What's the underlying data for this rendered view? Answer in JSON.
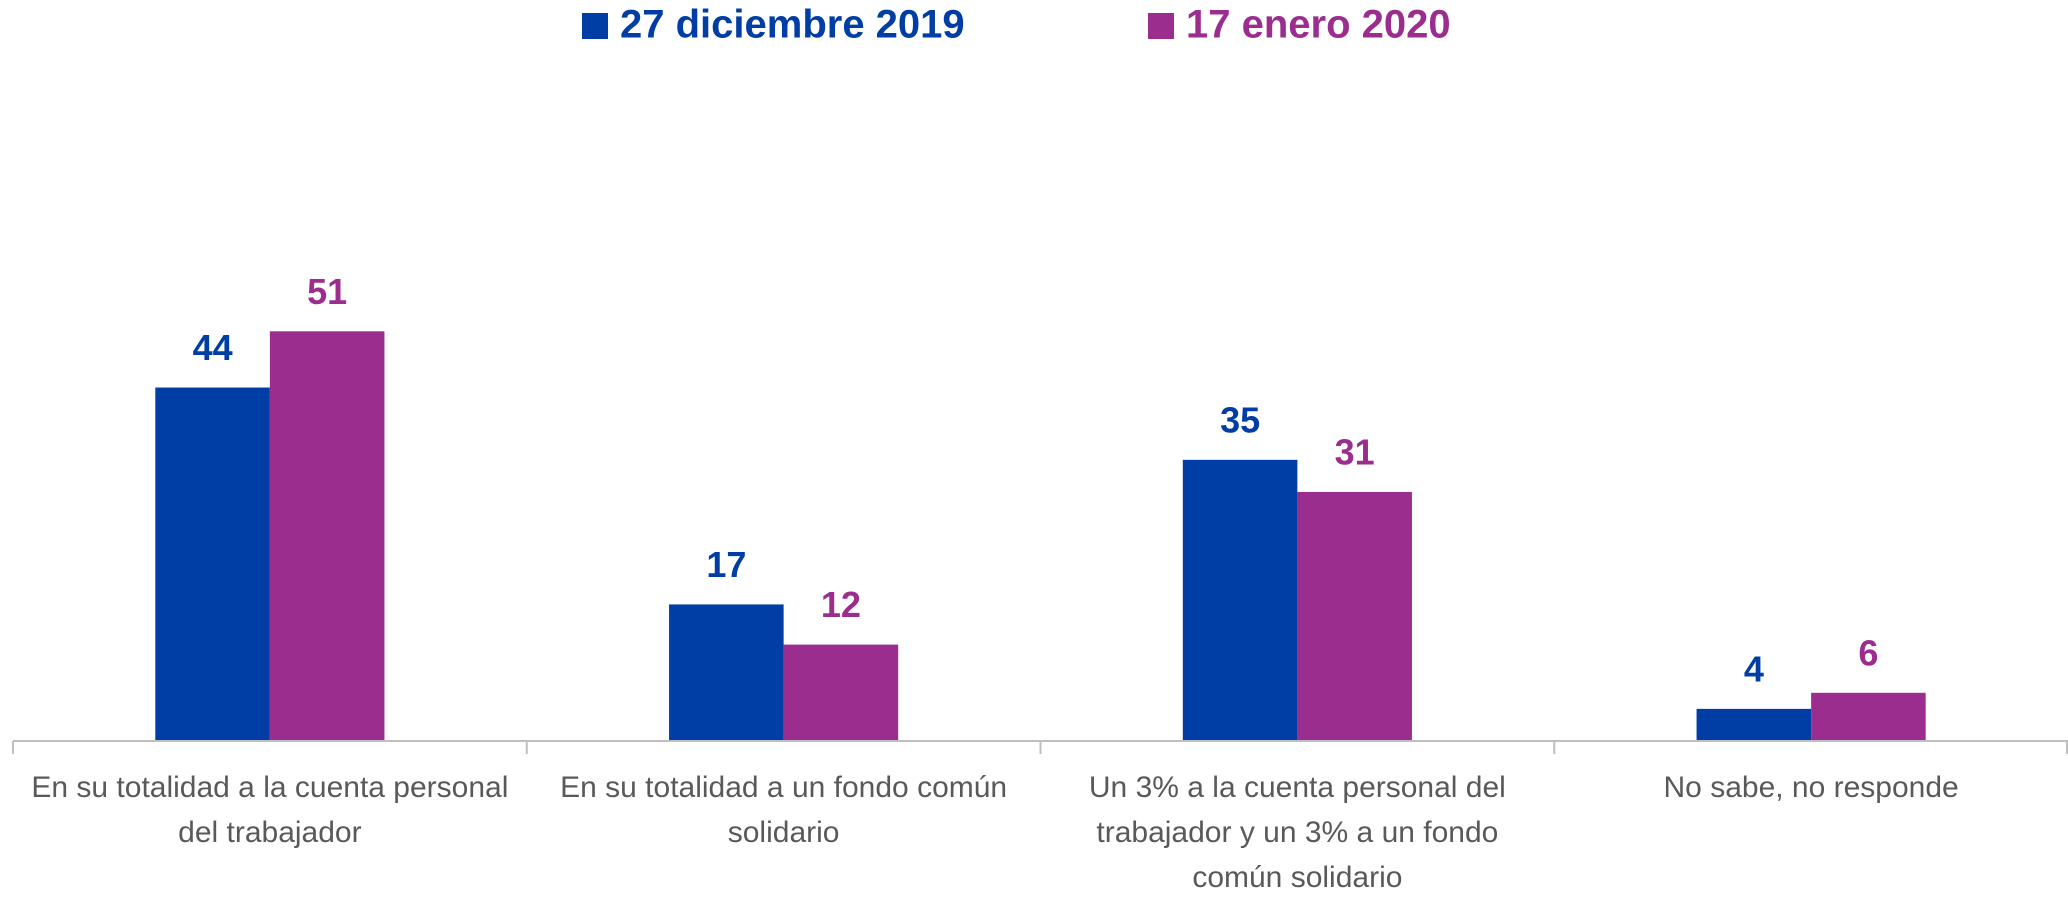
{
  "chart_data": {
    "type": "bar",
    "categories": [
      "En su totalidad a la cuenta personal del trabajador",
      "En su totalidad a un fondo común solidario",
      "Un 3% a la cuenta personal del trabajador y un 3% a un fondo común solidario",
      "No sabe, no responde"
    ],
    "series": [
      {
        "name": "27 diciembre 2019",
        "color": "#003da5",
        "values": [
          44,
          17,
          35,
          4
        ]
      },
      {
        "name": "17 enero 2020",
        "color": "#9b2d8f",
        "values": [
          51,
          12,
          31,
          6
        ]
      }
    ],
    "ylim": [
      0,
      60
    ],
    "legend": "top"
  }
}
